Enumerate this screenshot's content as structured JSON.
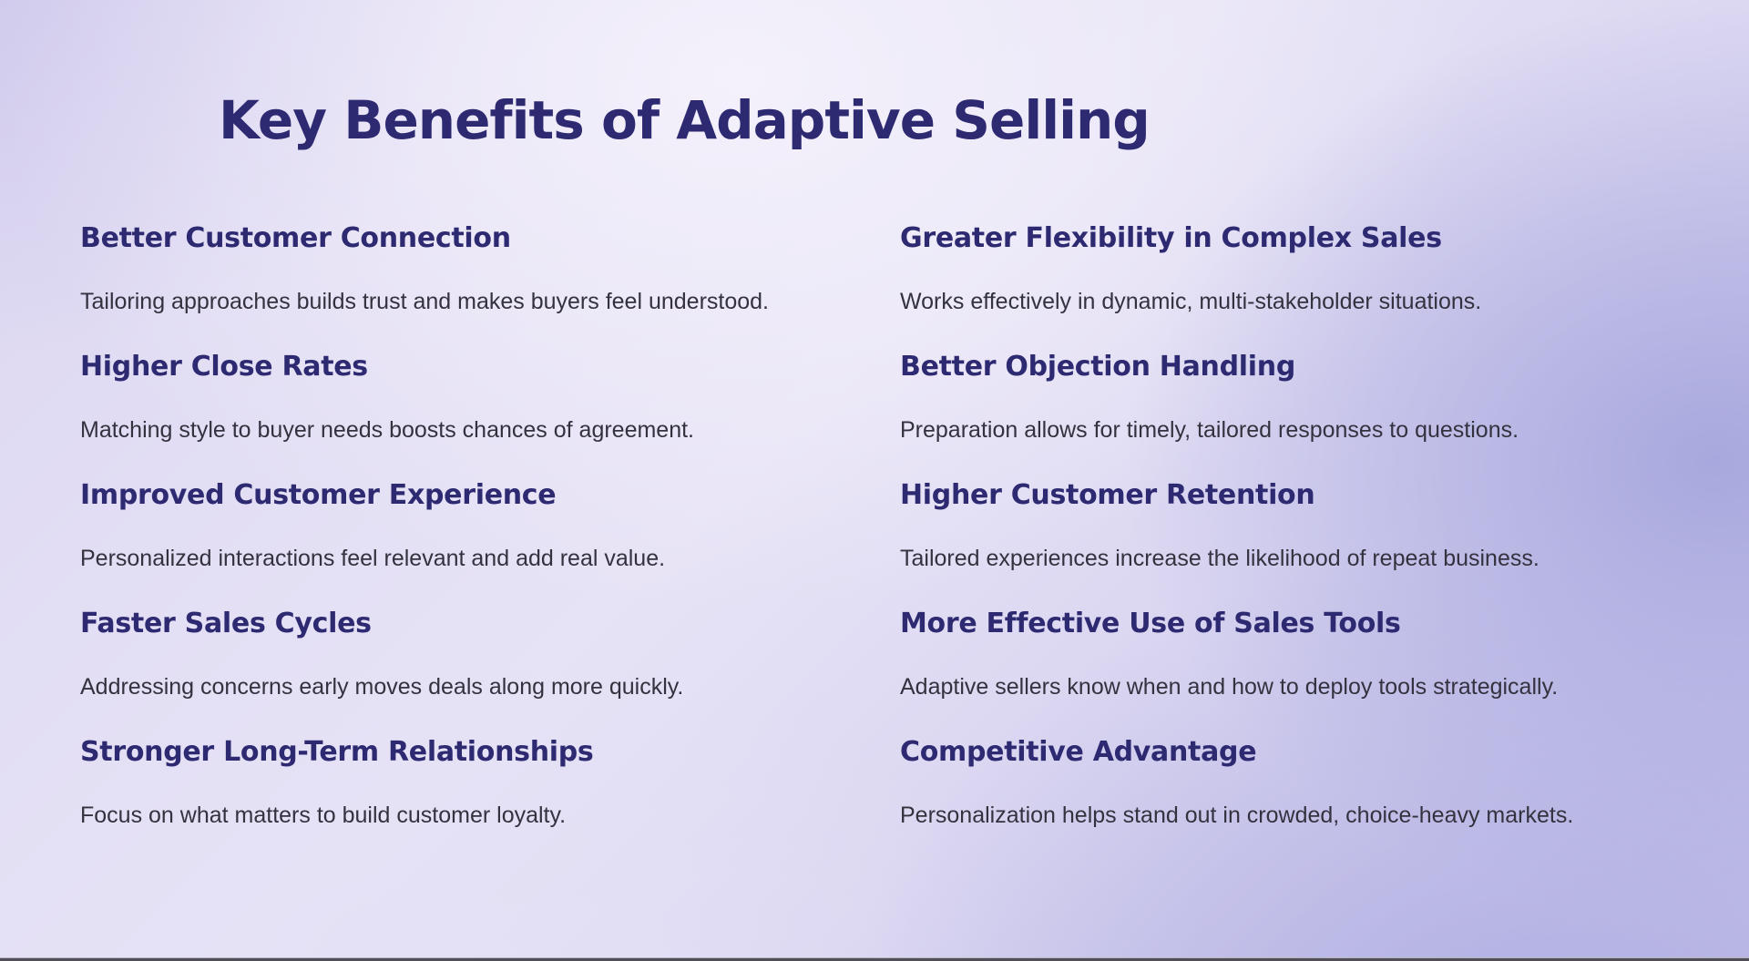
{
  "page": {
    "title": "Key Benefits of Adaptive Selling"
  },
  "colors": {
    "heading": "#2e2a72",
    "body_text": "#34323f",
    "background_light": "#e7e3f6",
    "background_periwinkle": "#b3b2e2",
    "bottom_edge": "#514e58"
  },
  "benefits": {
    "left": [
      {
        "title": "Better Customer Connection",
        "description": "Tailoring approaches builds trust and makes buyers feel understood."
      },
      {
        "title": "Higher Close Rates",
        "description": "Matching style to buyer needs boosts chances of agreement."
      },
      {
        "title": "Improved Customer Experience",
        "description": "Personalized interactions feel relevant and add real value."
      },
      {
        "title": "Faster Sales Cycles",
        "description": "Addressing concerns early moves deals along more quickly."
      },
      {
        "title": "Stronger Long-Term Relationships",
        "description": "Focus on what matters to build customer loyalty."
      }
    ],
    "right": [
      {
        "title": "Greater Flexibility in Complex Sales",
        "description": "Works effectively in dynamic, multi-stakeholder situations."
      },
      {
        "title": "Better Objection Handling",
        "description": "Preparation allows for timely, tailored responses to questions."
      },
      {
        "title": "Higher Customer Retention",
        "description": "Tailored experiences increase the likelihood of repeat business."
      },
      {
        "title": "More Effective Use of Sales Tools",
        "description": "Adaptive sellers know when and how to deploy tools strategically."
      },
      {
        "title": "Competitive Advantage",
        "description": "Personalization helps stand out in crowded, choice-heavy markets."
      }
    ]
  }
}
